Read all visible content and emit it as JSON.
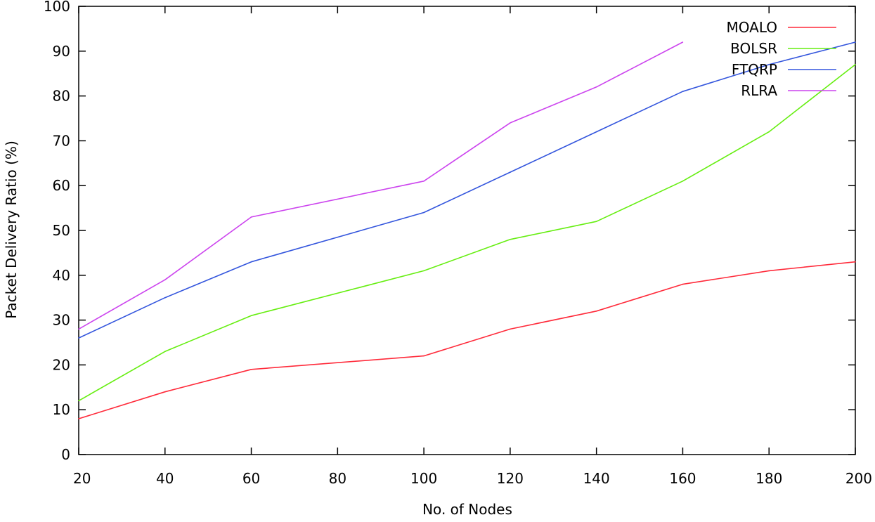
{
  "chart_data": {
    "type": "line",
    "title": "",
    "xlabel": "No. of Nodes",
    "ylabel": "Packet Delivery Ratio (%)",
    "xlim": [
      20,
      200
    ],
    "ylim": [
      0,
      100
    ],
    "xticks": [
      20,
      40,
      60,
      80,
      100,
      120,
      140,
      160,
      180,
      200
    ],
    "yticks": [
      0,
      10,
      20,
      30,
      40,
      50,
      60,
      70,
      80,
      90,
      100
    ],
    "grid": false,
    "legend_position": "top-right",
    "series": [
      {
        "name": "MOALO",
        "color": "#ff2a3a",
        "x": [
          20,
          40,
          60,
          100,
          120,
          140,
          160,
          180,
          200
        ],
        "y": [
          8,
          14,
          19,
          22,
          28,
          32,
          38,
          41,
          43
        ]
      },
      {
        "name": "BOLSR",
        "color": "#66ee11",
        "x": [
          20,
          40,
          60,
          100,
          120,
          140,
          160,
          180,
          200
        ],
        "y": [
          12,
          23,
          31,
          41,
          48,
          52,
          61,
          72,
          87
        ]
      },
      {
        "name": "FTQRP",
        "color": "#3355dd",
        "x": [
          20,
          40,
          60,
          100,
          120,
          140,
          160,
          180,
          200
        ],
        "y": [
          26,
          35,
          43,
          54,
          63,
          72,
          81,
          87,
          92
        ]
      },
      {
        "name": "RLRA",
        "color": "#cc44ee",
        "x": [
          20,
          40,
          60,
          100,
          120,
          140,
          160
        ],
        "y": [
          28,
          39,
          53,
          61,
          74,
          82,
          92
        ]
      }
    ]
  }
}
